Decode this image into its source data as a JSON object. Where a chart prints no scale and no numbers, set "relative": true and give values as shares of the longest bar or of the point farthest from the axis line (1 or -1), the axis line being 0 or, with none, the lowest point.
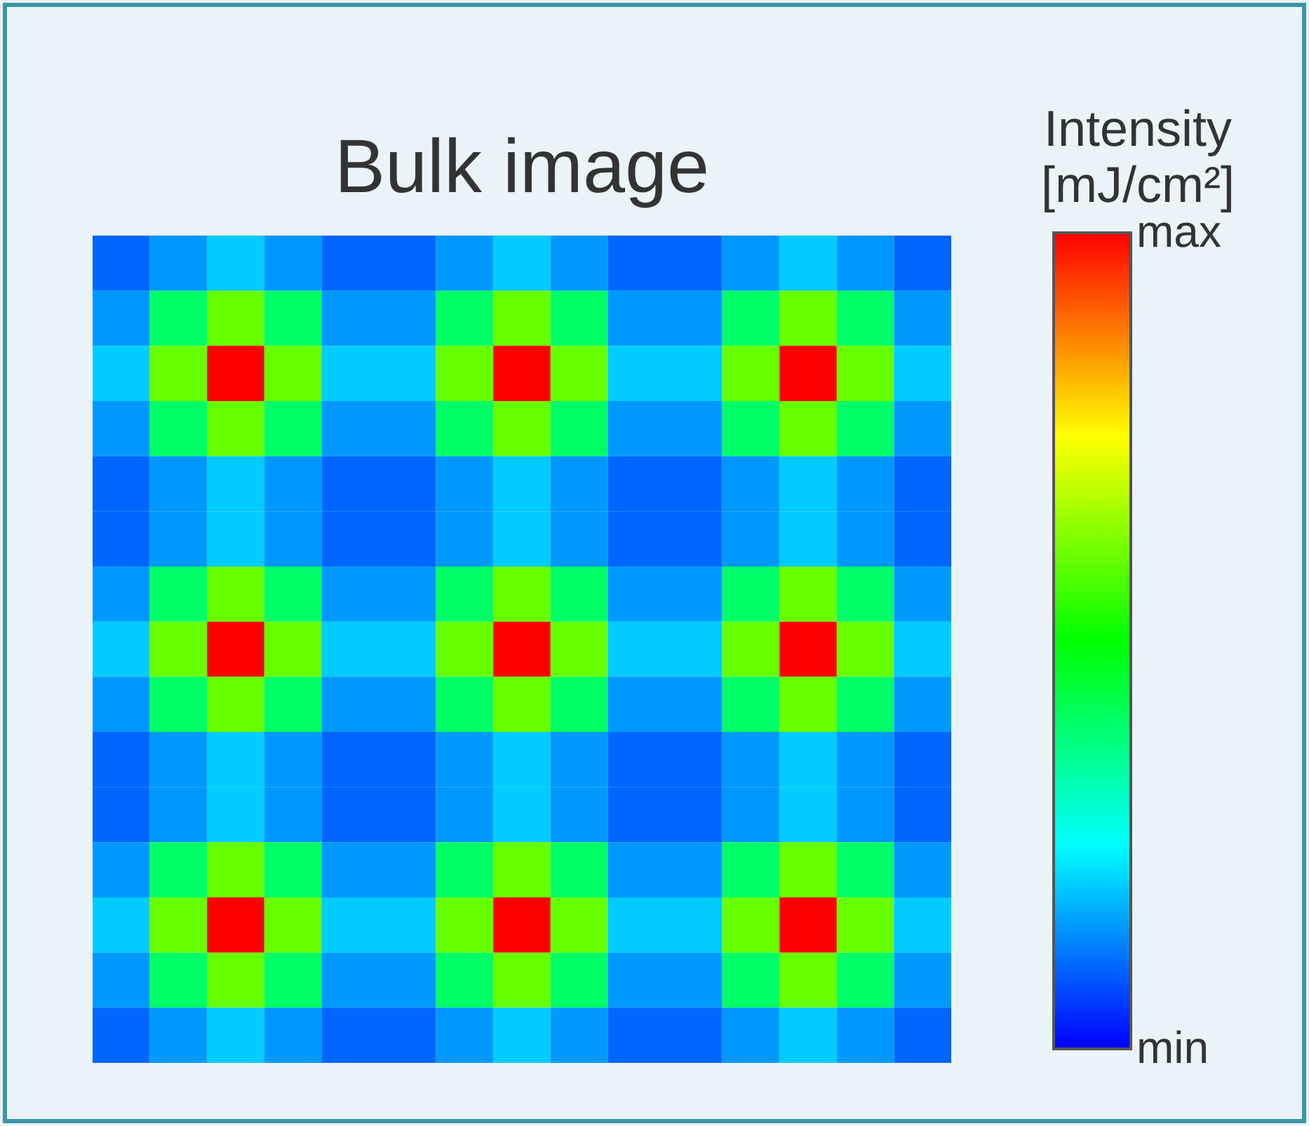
{
  "chart_data": {
    "type": "heatmap",
    "title": "Bulk image",
    "clabel": "Intensity [mJ/cm²]",
    "categories": [
      null,
      null,
      null,
      null,
      null,
      null,
      null,
      null,
      null,
      null,
      null,
      null,
      null,
      null,
      null
    ],
    "y_categories": [
      null,
      null,
      null,
      null,
      null,
      null,
      null,
      null,
      null,
      null,
      null,
      null,
      null,
      null,
      null
    ],
    "cells": [
      [
        0.1,
        0.15,
        0.2,
        0.15,
        0.1,
        0.1,
        0.15,
        0.2,
        0.15,
        0.1,
        0.1,
        0.15,
        0.2,
        0.15,
        0.1
      ],
      [
        0.15,
        0.4,
        0.6,
        0.4,
        0.15,
        0.15,
        0.4,
        0.6,
        0.4,
        0.15,
        0.15,
        0.4,
        0.6,
        0.4,
        0.15
      ],
      [
        0.2,
        0.6,
        1.0,
        0.6,
        0.2,
        0.2,
        0.6,
        1.0,
        0.6,
        0.2,
        0.2,
        0.6,
        1.0,
        0.6,
        0.2
      ],
      [
        0.15,
        0.4,
        0.6,
        0.4,
        0.15,
        0.15,
        0.4,
        0.6,
        0.4,
        0.15,
        0.15,
        0.4,
        0.6,
        0.4,
        0.15
      ],
      [
        0.1,
        0.15,
        0.2,
        0.15,
        0.1,
        0.1,
        0.15,
        0.2,
        0.15,
        0.1,
        0.1,
        0.15,
        0.2,
        0.15,
        0.1
      ],
      [
        0.1,
        0.15,
        0.2,
        0.15,
        0.1,
        0.1,
        0.15,
        0.2,
        0.15,
        0.1,
        0.1,
        0.15,
        0.2,
        0.15,
        0.1
      ],
      [
        0.15,
        0.4,
        0.6,
        0.4,
        0.15,
        0.15,
        0.4,
        0.6,
        0.4,
        0.15,
        0.15,
        0.4,
        0.6,
        0.4,
        0.15
      ],
      [
        0.2,
        0.6,
        1.0,
        0.6,
        0.2,
        0.2,
        0.6,
        1.0,
        0.6,
        0.2,
        0.2,
        0.6,
        1.0,
        0.6,
        0.2
      ],
      [
        0.15,
        0.4,
        0.6,
        0.4,
        0.15,
        0.15,
        0.4,
        0.6,
        0.4,
        0.15,
        0.15,
        0.4,
        0.6,
        0.4,
        0.15
      ],
      [
        0.1,
        0.15,
        0.2,
        0.15,
        0.1,
        0.1,
        0.15,
        0.2,
        0.15,
        0.1,
        0.1,
        0.15,
        0.2,
        0.15,
        0.1
      ],
      [
        0.1,
        0.15,
        0.2,
        0.15,
        0.1,
        0.1,
        0.15,
        0.2,
        0.15,
        0.1,
        0.1,
        0.15,
        0.2,
        0.15,
        0.1
      ],
      [
        0.15,
        0.4,
        0.6,
        0.4,
        0.15,
        0.15,
        0.4,
        0.6,
        0.4,
        0.15,
        0.15,
        0.4,
        0.6,
        0.4,
        0.15
      ],
      [
        0.2,
        0.6,
        1.0,
        0.6,
        0.2,
        0.2,
        0.6,
        1.0,
        0.6,
        0.2,
        0.2,
        0.6,
        1.0,
        0.6,
        0.2
      ],
      [
        0.15,
        0.4,
        0.6,
        0.4,
        0.15,
        0.15,
        0.4,
        0.6,
        0.4,
        0.15,
        0.15,
        0.4,
        0.6,
        0.4,
        0.15
      ],
      [
        0.1,
        0.15,
        0.2,
        0.15,
        0.1,
        0.1,
        0.15,
        0.2,
        0.15,
        0.1,
        0.1,
        0.15,
        0.2,
        0.15,
        0.1
      ]
    ],
    "clim": [
      0,
      1
    ],
    "cticks": [
      {
        "value": 0,
        "label": "min"
      },
      {
        "value": 1,
        "label": "max"
      }
    ],
    "relative": true
  }
}
